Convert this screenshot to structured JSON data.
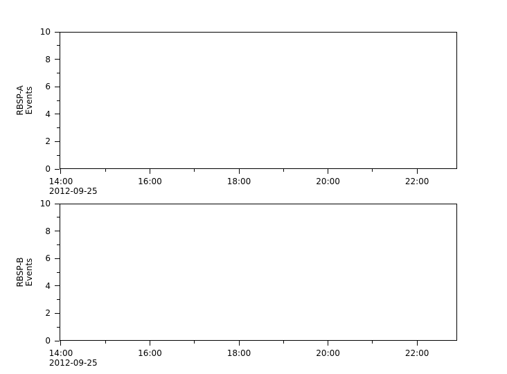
{
  "figure": {
    "background": "#ffffff",
    "foreground": "#000000"
  },
  "chart_data": [
    {
      "type": "line",
      "title": "",
      "panel_id": "RBSP-A",
      "ylabel_lines": [
        "RBSP-A",
        "Events"
      ],
      "xlabel": "",
      "x_axis_date_label": "2012-09-25",
      "ylim": [
        0,
        10
      ],
      "xlim_hours": [
        13.97,
        22.9
      ],
      "y_major_ticks": [
        {
          "value": 0,
          "label": "0"
        },
        {
          "value": 2,
          "label": "2"
        },
        {
          "value": 4,
          "label": "4"
        },
        {
          "value": 6,
          "label": "6"
        },
        {
          "value": 8,
          "label": "8"
        },
        {
          "value": 10,
          "label": "10"
        }
      ],
      "y_minor_tick_values": [
        1,
        3,
        5,
        7,
        9
      ],
      "x_major_ticks": [
        {
          "hour": 14,
          "label": "14:00"
        },
        {
          "hour": 16,
          "label": "16:00"
        },
        {
          "hour": 18,
          "label": "18:00"
        },
        {
          "hour": 20,
          "label": "20:00"
        },
        {
          "hour": 22,
          "label": "22:00"
        }
      ],
      "x_minor_tick_hours": [
        15,
        17,
        19,
        21
      ],
      "grid": false,
      "legend": null,
      "series": []
    },
    {
      "type": "line",
      "title": "",
      "panel_id": "RBSP-B",
      "ylabel_lines": [
        "RBSP-B",
        "Events"
      ],
      "xlabel": "",
      "x_axis_date_label": "2012-09-25",
      "ylim": [
        0,
        10
      ],
      "xlim_hours": [
        13.97,
        22.9
      ],
      "y_major_ticks": [
        {
          "value": 0,
          "label": "0"
        },
        {
          "value": 2,
          "label": "2"
        },
        {
          "value": 4,
          "label": "4"
        },
        {
          "value": 6,
          "label": "6"
        },
        {
          "value": 8,
          "label": "8"
        },
        {
          "value": 10,
          "label": "10"
        }
      ],
      "y_minor_tick_values": [
        1,
        3,
        5,
        7,
        9
      ],
      "x_major_ticks": [
        {
          "hour": 14,
          "label": "14:00"
        },
        {
          "hour": 16,
          "label": "16:00"
        },
        {
          "hour": 18,
          "label": "18:00"
        },
        {
          "hour": 20,
          "label": "20:00"
        },
        {
          "hour": 22,
          "label": "22:00"
        }
      ],
      "x_minor_tick_hours": [
        15,
        17,
        19,
        21
      ],
      "grid": false,
      "legend": null,
      "series": []
    }
  ]
}
